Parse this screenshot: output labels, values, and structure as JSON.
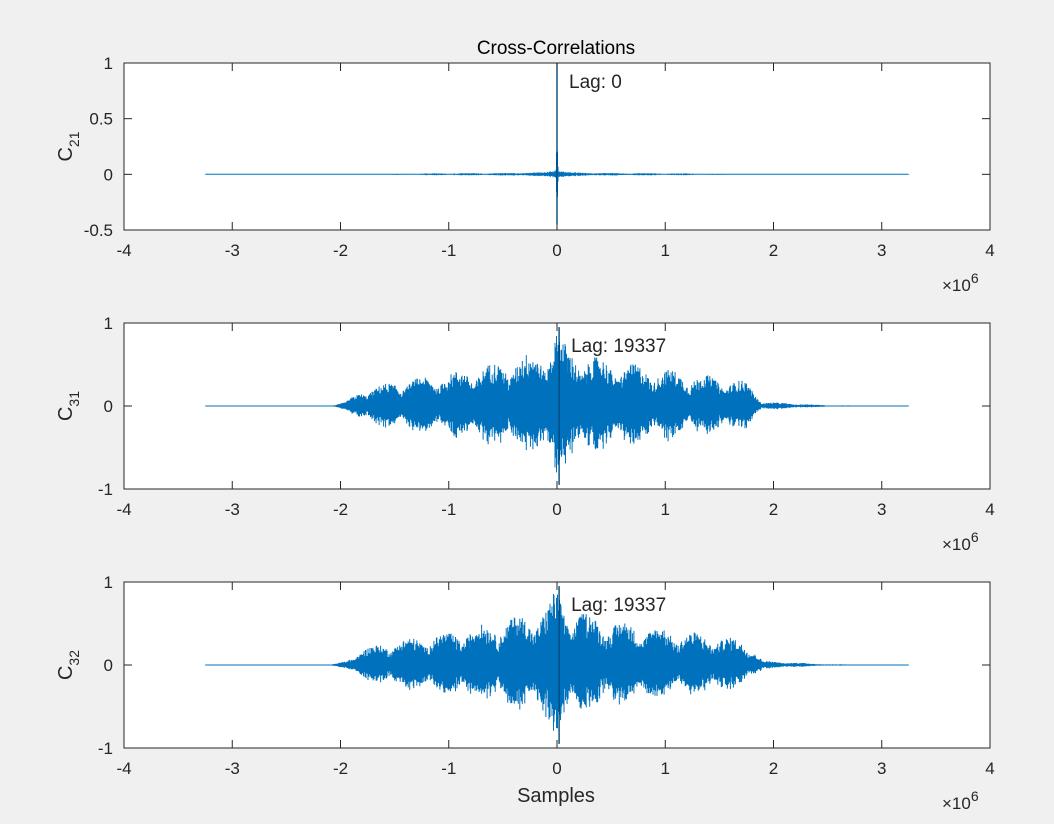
{
  "chart_data": {
    "type": "line",
    "title": "Cross-Correlations",
    "colors": {
      "series": "#0072bd",
      "axes": "#262626",
      "background": "#ffffff",
      "figure": "#f0f0f0"
    },
    "exponent_label": "×10^6",
    "xlabel_bottom": "Samples",
    "x_ticks": [
      -4,
      -3,
      -2,
      -1,
      0,
      1,
      2,
      3,
      4
    ],
    "x_range_data": [
      -3250000,
      3250000
    ],
    "x_data_scale": "×10^6",
    "subplots": [
      {
        "ylabel_main": "C",
        "ylabel_sub": "21",
        "ylim": [
          -0.5,
          1
        ],
        "yticks": [
          -0.5,
          0,
          0.5,
          1
        ],
        "ytick_labels": [
          "-0.5",
          "0",
          "0.5",
          "1"
        ],
        "annotation": "Lag: 0",
        "peak_lag": 0,
        "peak_value": 1.0,
        "min_value": -0.45,
        "envelope": [
          [
            -3.25,
            0.0
          ],
          [
            -2.0,
            0.0
          ],
          [
            -1.7,
            0.004
          ],
          [
            -1.5,
            0.006
          ],
          [
            -1.0,
            0.01
          ],
          [
            -0.5,
            0.012
          ],
          [
            -0.1,
            0.02
          ],
          [
            -0.01,
            0.05
          ],
          [
            0.0,
            1.0
          ],
          [
            0.01,
            0.05
          ],
          [
            0.1,
            0.02
          ],
          [
            0.5,
            0.012
          ],
          [
            1.0,
            0.01
          ],
          [
            1.5,
            0.006
          ],
          [
            1.7,
            0.004
          ],
          [
            2.0,
            0.0
          ],
          [
            3.25,
            0.0
          ]
        ]
      },
      {
        "ylabel_main": "C",
        "ylabel_sub": "31",
        "ylim": [
          -1,
          1
        ],
        "yticks": [
          -1,
          0,
          1
        ],
        "ytick_labels": [
          "-1",
          "0",
          "1"
        ],
        "annotation": "Lag: 19337",
        "peak_lag": 19337,
        "peak_value": 0.95,
        "min_value": -0.95,
        "envelope": [
          [
            -3.25,
            0.0
          ],
          [
            -2.1,
            0.0
          ],
          [
            -1.95,
            0.05
          ],
          [
            -1.8,
            0.2
          ],
          [
            -1.5,
            0.3
          ],
          [
            -1.0,
            0.4
          ],
          [
            -0.5,
            0.55
          ],
          [
            -0.1,
            0.7
          ],
          [
            0.0,
            0.95
          ],
          [
            0.1,
            0.7
          ],
          [
            0.5,
            0.55
          ],
          [
            1.0,
            0.45
          ],
          [
            1.5,
            0.35
          ],
          [
            1.75,
            0.3
          ],
          [
            1.9,
            0.05
          ],
          [
            2.5,
            0.01
          ],
          [
            3.25,
            0.0
          ]
        ]
      },
      {
        "ylabel_main": "C",
        "ylabel_sub": "32",
        "ylim": [
          -1,
          1
        ],
        "yticks": [
          -1,
          0,
          1
        ],
        "ytick_labels": [
          "-1",
          "0",
          "1"
        ],
        "annotation": "Lag: 19337",
        "peak_lag": 19337,
        "peak_value": 0.95,
        "min_value": -0.95,
        "envelope": [
          [
            -3.25,
            0.0
          ],
          [
            -2.1,
            0.0
          ],
          [
            -1.95,
            0.05
          ],
          [
            -1.8,
            0.2
          ],
          [
            -1.5,
            0.3
          ],
          [
            -1.0,
            0.4
          ],
          [
            -0.5,
            0.55
          ],
          [
            -0.1,
            0.7
          ],
          [
            0.0,
            0.95
          ],
          [
            0.1,
            0.7
          ],
          [
            0.5,
            0.55
          ],
          [
            1.0,
            0.45
          ],
          [
            1.5,
            0.35
          ],
          [
            1.75,
            0.3
          ],
          [
            1.9,
            0.05
          ],
          [
            2.5,
            0.01
          ],
          [
            3.25,
            0.0
          ]
        ]
      }
    ]
  }
}
